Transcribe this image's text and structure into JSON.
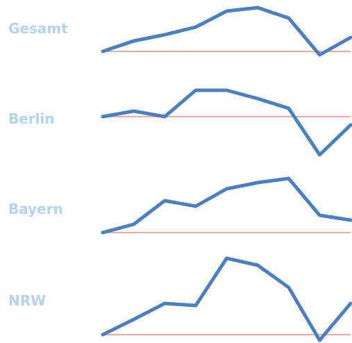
{
  "colors": {
    "label": "#b3d4ec",
    "line": "#4a7fc1",
    "baseline": "#f2a9a0"
  },
  "chart_data": [
    {
      "type": "line",
      "label": "Gesamt",
      "x": [
        1,
        2,
        3,
        4,
        5,
        6,
        7,
        8,
        9
      ],
      "values": [
        0,
        15,
        24,
        35,
        58,
        63,
        48,
        -5,
        20
      ],
      "baseline": 0
    },
    {
      "type": "line",
      "label": "Berlin",
      "x": [
        1,
        2,
        3,
        4,
        5,
        6,
        7,
        8,
        9
      ],
      "values": [
        0,
        8,
        0,
        38,
        38,
        26,
        12,
        -55,
        -12
      ],
      "baseline": 0
    },
    {
      "type": "line",
      "label": "Bayern",
      "x": [
        1,
        2,
        3,
        4,
        5,
        6,
        7,
        8,
        9
      ],
      "values": [
        0,
        12,
        46,
        38,
        63,
        72,
        78,
        25,
        18
      ],
      "baseline": 0
    },
    {
      "type": "line",
      "label": "NRW",
      "x": [
        1,
        2,
        3,
        4,
        5,
        6,
        7,
        8,
        9
      ],
      "values": [
        0,
        22,
        45,
        42,
        110,
        100,
        68,
        -8,
        45
      ],
      "baseline": 0
    }
  ]
}
